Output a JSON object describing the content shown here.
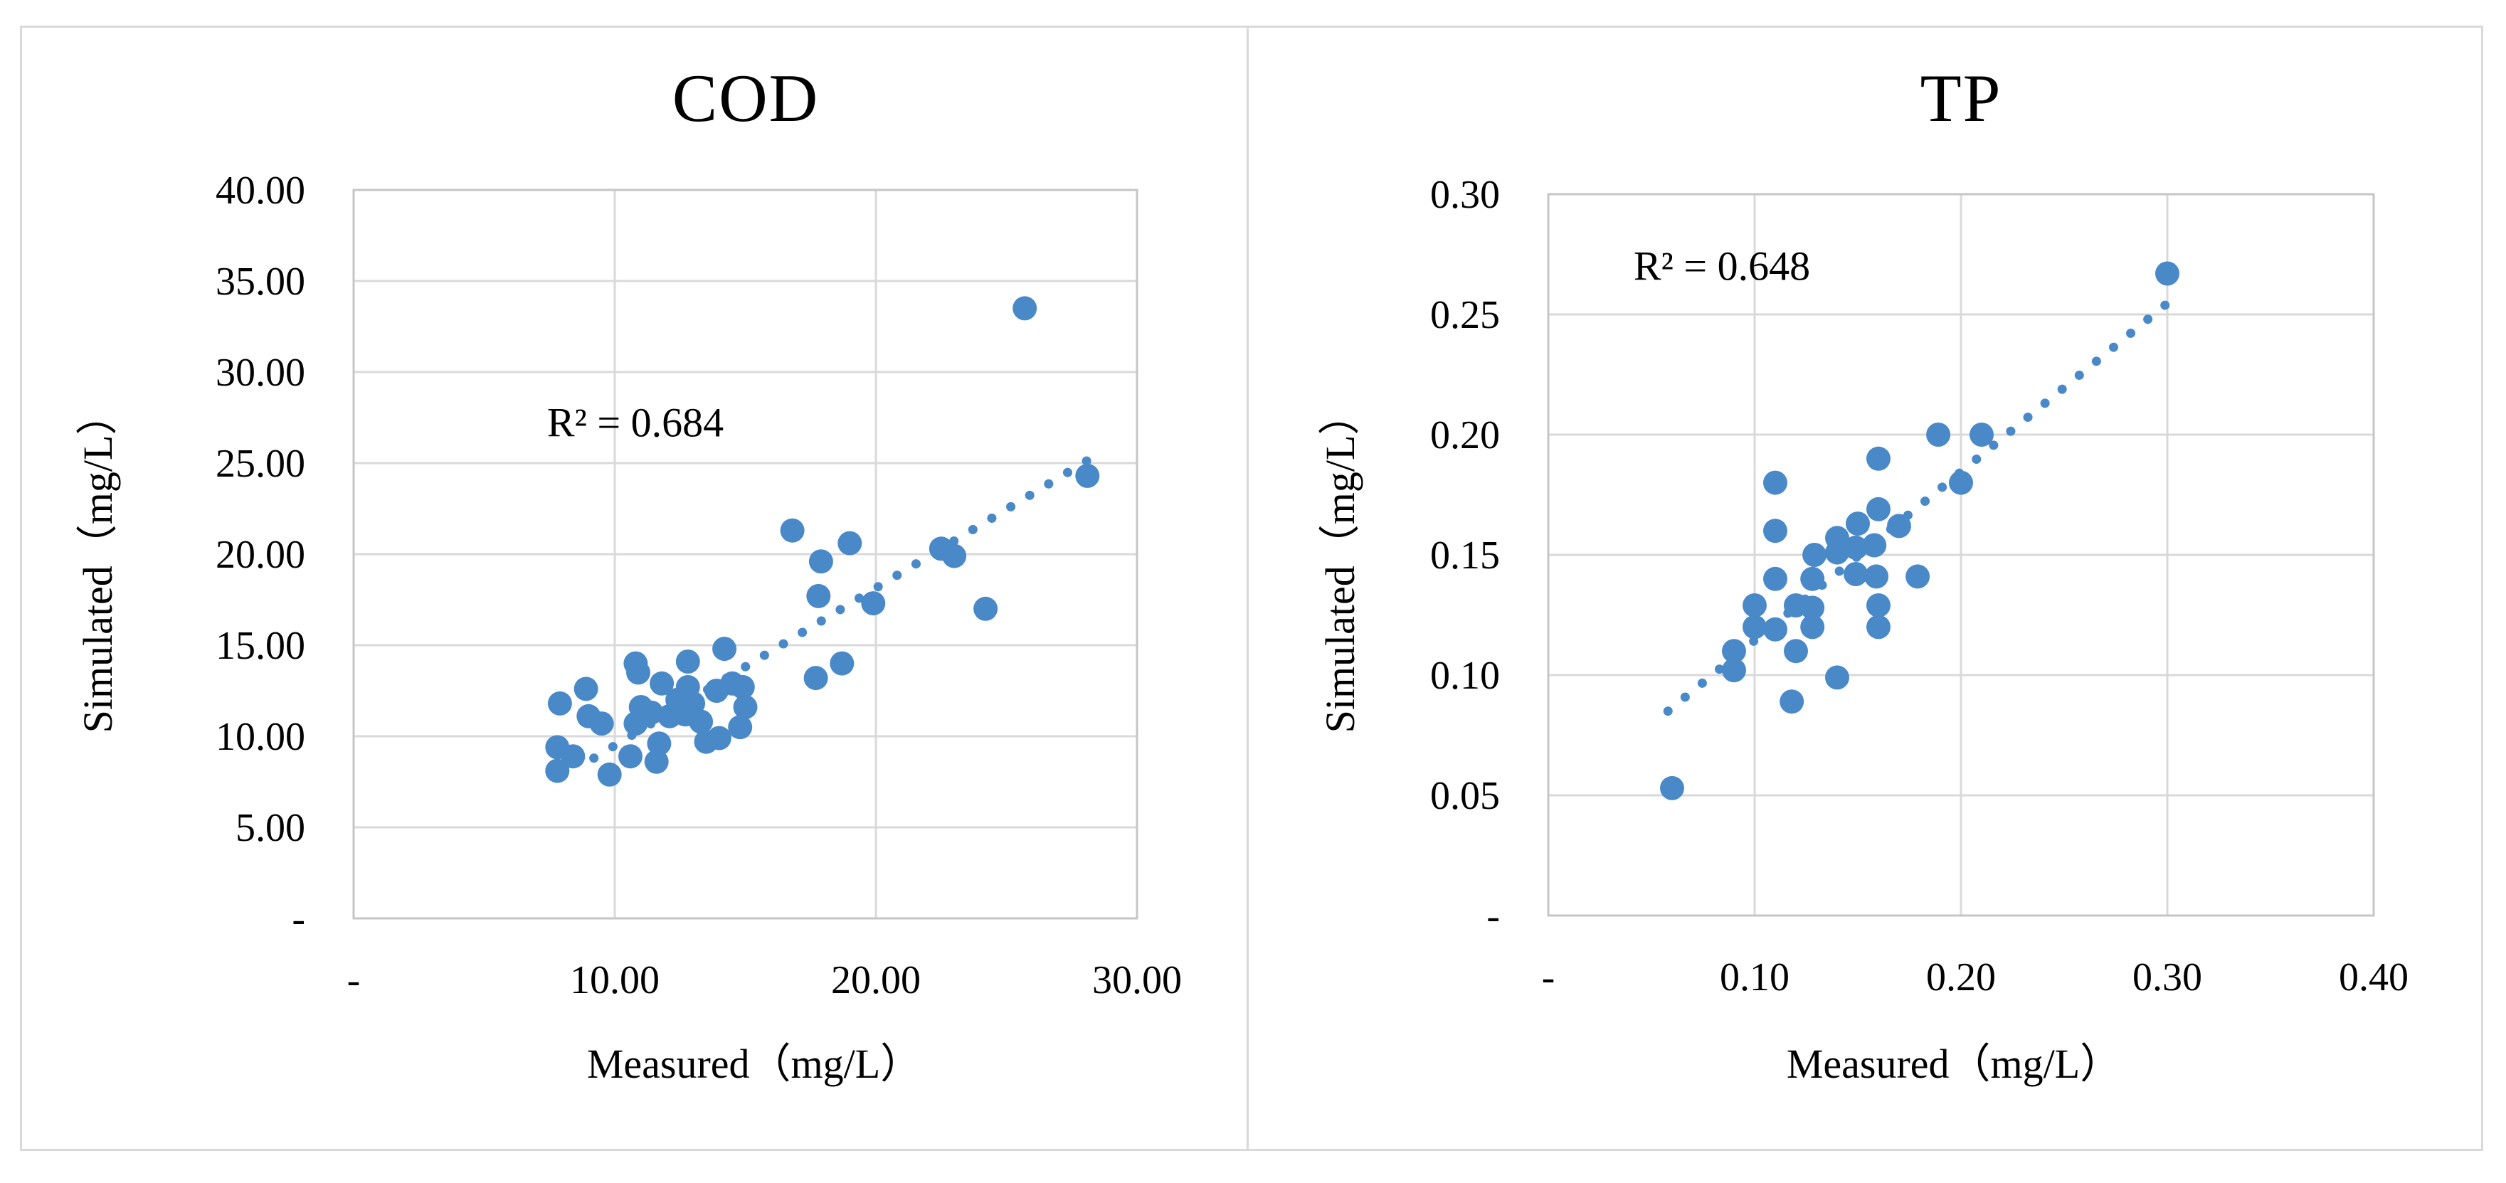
{
  "figure": {
    "panel_count": 2,
    "colors": {
      "marker": "#4a89c8",
      "trendline": "#4a89c8",
      "gridline": "#d9d9d9",
      "plot_border": "#c6c6c6",
      "frame_border": "#d9d9d9",
      "text": "#000000"
    }
  },
  "chart_data": [
    {
      "type": "scatter",
      "title": "COD",
      "r2_label": "R² = 0.684",
      "xlabel": "Measured（mg/L）",
      "ylabel": "Simulated（mg/L）",
      "xlim": [
        0,
        30
      ],
      "ylim": [
        0,
        40
      ],
      "grid": true,
      "legend": "none",
      "x_ticks": [
        {
          "v": 0,
          "label": "-"
        },
        {
          "v": 10,
          "label": "10.00"
        },
        {
          "v": 20,
          "label": "20.00"
        },
        {
          "v": 30,
          "label": "30.00"
        }
      ],
      "y_ticks": [
        {
          "v": 40,
          "label": "40.00"
        },
        {
          "v": 35,
          "label": "35.00"
        },
        {
          "v": 30,
          "label": "30.00"
        },
        {
          "v": 25,
          "label": "25.00"
        },
        {
          "v": 20,
          "label": "20.00"
        },
        {
          "v": 15,
          "label": "15.00"
        },
        {
          "v": 10,
          "label": "10.00"
        },
        {
          "v": 5,
          "label": "5.00"
        },
        {
          "v": 0,
          "label": "-"
        }
      ],
      "points": [
        [
          7.8,
          9.4
        ],
        [
          7.8,
          8.1
        ],
        [
          8.4,
          8.9
        ],
        [
          7.9,
          11.8
        ],
        [
          8.9,
          12.6
        ],
        [
          9.0,
          11.1
        ],
        [
          9.5,
          10.7
        ],
        [
          9.8,
          7.9
        ],
        [
          10.6,
          8.9
        ],
        [
          10.8,
          14.0
        ],
        [
          10.9,
          13.5
        ],
        [
          11.0,
          11.6
        ],
        [
          10.8,
          10.7
        ],
        [
          11.4,
          11.3
        ],
        [
          11.6,
          8.6
        ],
        [
          11.7,
          9.6
        ],
        [
          11.8,
          12.9
        ],
        [
          12.1,
          11.1
        ],
        [
          12.4,
          12.0
        ],
        [
          12.7,
          11.2
        ],
        [
          12.8,
          14.1
        ],
        [
          12.8,
          12.7
        ],
        [
          13.0,
          11.8
        ],
        [
          13.3,
          10.8
        ],
        [
          13.5,
          9.7
        ],
        [
          13.9,
          12.5
        ],
        [
          14.0,
          9.9
        ],
        [
          14.2,
          14.8
        ],
        [
          14.5,
          12.9
        ],
        [
          14.8,
          10.5
        ],
        [
          14.9,
          12.7
        ],
        [
          15.0,
          11.6
        ],
        [
          16.8,
          21.3
        ],
        [
          17.7,
          13.2
        ],
        [
          17.8,
          17.7
        ],
        [
          17.9,
          19.6
        ],
        [
          18.7,
          14.0
        ],
        [
          19.0,
          20.6
        ],
        [
          19.9,
          17.3
        ],
        [
          22.5,
          20.3
        ],
        [
          23.0,
          19.9
        ],
        [
          24.2,
          17.0
        ],
        [
          25.7,
          33.5
        ],
        [
          28.1,
          24.3
        ]
      ],
      "trendline": {
        "x1": 9.2,
        "y1": 8.8,
        "x2": 28.4,
        "y2": 25.4
      }
    },
    {
      "type": "scatter",
      "title": "TP",
      "r2_label": "R² = 0.648",
      "xlabel": "Measured（mg/L）",
      "ylabel": "Simulated（mg/L）",
      "xlim": [
        0,
        0.4
      ],
      "ylim": [
        0,
        0.3
      ],
      "grid": true,
      "legend": "none",
      "x_ticks": [
        {
          "v": 0,
          "label": "-"
        },
        {
          "v": 0.1,
          "label": "0.10"
        },
        {
          "v": 0.2,
          "label": "0.20"
        },
        {
          "v": 0.3,
          "label": "0.30"
        },
        {
          "v": 0.4,
          "label": "0.40"
        }
      ],
      "y_ticks": [
        {
          "v": 0.3,
          "label": "0.30"
        },
        {
          "v": 0.25,
          "label": "0.25"
        },
        {
          "v": 0.2,
          "label": "0.20"
        },
        {
          "v": 0.15,
          "label": "0.15"
        },
        {
          "v": 0.1,
          "label": "0.10"
        },
        {
          "v": 0.05,
          "label": "0.05"
        },
        {
          "v": 0,
          "label": "-"
        }
      ],
      "points": [
        [
          0.06,
          0.053
        ],
        [
          0.09,
          0.11
        ],
        [
          0.09,
          0.102
        ],
        [
          0.1,
          0.129
        ],
        [
          0.1,
          0.12
        ],
        [
          0.11,
          0.18
        ],
        [
          0.11,
          0.16
        ],
        [
          0.11,
          0.14
        ],
        [
          0.11,
          0.119
        ],
        [
          0.12,
          0.129
        ],
        [
          0.12,
          0.11
        ],
        [
          0.118,
          0.089
        ],
        [
          0.128,
          0.14
        ],
        [
          0.128,
          0.128
        ],
        [
          0.128,
          0.12
        ],
        [
          0.129,
          0.15
        ],
        [
          0.14,
          0.157
        ],
        [
          0.14,
          0.151
        ],
        [
          0.14,
          0.099
        ],
        [
          0.15,
          0.163
        ],
        [
          0.149,
          0.153
        ],
        [
          0.149,
          0.142
        ],
        [
          0.158,
          0.154
        ],
        [
          0.159,
          0.141
        ],
        [
          0.16,
          0.129
        ],
        [
          0.16,
          0.12
        ],
        [
          0.16,
          0.19
        ],
        [
          0.16,
          0.169
        ],
        [
          0.17,
          0.162
        ],
        [
          0.179,
          0.141
        ],
        [
          0.189,
          0.2
        ],
        [
          0.21,
          0.2
        ],
        [
          0.2,
          0.18
        ],
        [
          0.3,
          0.267
        ]
      ],
      "trendline": {
        "x1": 0.058,
        "y1": 0.085,
        "x2": 0.302,
        "y2": 0.256
      }
    }
  ]
}
